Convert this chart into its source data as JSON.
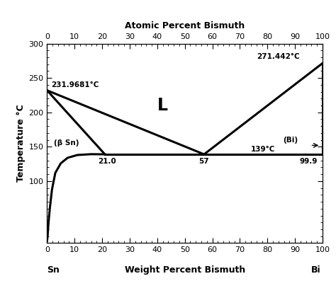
{
  "title_top": "Atomic Percent Bismuth",
  "xlabel": "Weight Percent Bismuth",
  "ylabel": "Temperature °C",
  "xlim": [
    0,
    100
  ],
  "ylim": [
    10,
    300
  ],
  "xticks": [
    0,
    10,
    20,
    30,
    40,
    50,
    60,
    70,
    80,
    90,
    100
  ],
  "yticks": [
    100,
    150,
    200,
    250,
    300
  ],
  "top_xticks": [
    0,
    10,
    20,
    30,
    40,
    50,
    60,
    70,
    80,
    90,
    100
  ],
  "sn_melt_T": 231.9681,
  "bi_melt_T": 271.442,
  "eutectic_T": 139,
  "eutectic_wt": 57,
  "sn_solidus_wt": 21.0,
  "bi_solidus_wt": 99.9,
  "sn_label": "Sn",
  "bi_label": "Bi",
  "L_label": "L",
  "bSn_label": "(β Sn)",
  "Bi_region_label": "(Bi)",
  "ann_sn_melt": "231.9681°C",
  "ann_bi_melt": "271.442°C",
  "ann_eutectic_T": "139°C",
  "ann_sn_solidus": "21.0",
  "ann_eutectic_wt": "57",
  "ann_bi_solidus": "99.9",
  "line_color": "#000000",
  "line_width": 2.2,
  "bg_color": "#ffffff",
  "solvus_x": [
    0.0,
    0.2,
    0.5,
    1.0,
    1.8,
    3.0,
    5.0,
    7.5,
    11.0,
    16.0,
    21.0
  ],
  "solvus_y": [
    13,
    20,
    38,
    60,
    88,
    112,
    126,
    134,
    138,
    139.2,
    139
  ]
}
